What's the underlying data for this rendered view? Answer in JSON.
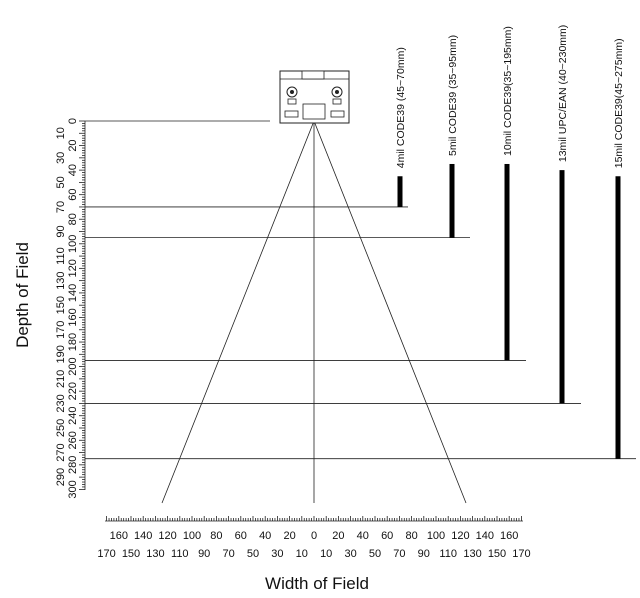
{
  "axes": {
    "y_title": "Depth of Field",
    "x_title": "Width of Field",
    "depth_ticks": [
      0,
      10,
      20,
      30,
      40,
      50,
      60,
      70,
      80,
      90,
      100,
      110,
      120,
      130,
      140,
      150,
      160,
      170,
      180,
      190,
      200,
      210,
      220,
      230,
      240,
      250,
      260,
      270,
      280,
      290,
      300
    ],
    "depth_range": [
      0,
      300
    ],
    "width_ticks_upper": [
      160,
      140,
      120,
      100,
      80,
      60,
      40,
      20,
      0,
      20,
      40,
      60,
      80,
      100,
      120,
      140,
      160
    ],
    "width_ticks_lower": [
      170,
      150,
      130,
      110,
      90,
      70,
      50,
      30,
      10,
      10,
      30,
      50,
      70,
      90,
      110,
      130,
      150,
      170
    ],
    "width_range": [
      -170,
      170
    ],
    "unit": "mm"
  },
  "view_cone": {
    "apex_depth": 0,
    "end_depth": 300,
    "half_width_at_end": 120
  },
  "codes": [
    {
      "label": "4mil CODE39  (45~70mm)",
      "min": 45,
      "max": 70,
      "line_depth": 70
    },
    {
      "label": "5mil CODE39  (35~95mm)",
      "min": 35,
      "max": 95,
      "line_depth": 95
    },
    {
      "label": "10mil CODE39(35~195mm)",
      "min": 35,
      "max": 195,
      "line_depth": 195
    },
    {
      "label": "13mil UPC/EAN (40~230mm)",
      "min": 40,
      "max": 230,
      "line_depth": 230
    },
    {
      "label": "15mil CODE39(45~275mm)",
      "min": 45,
      "max": 275,
      "line_depth": 275
    }
  ],
  "scanner": {
    "icon": "scanner-icon"
  }
}
